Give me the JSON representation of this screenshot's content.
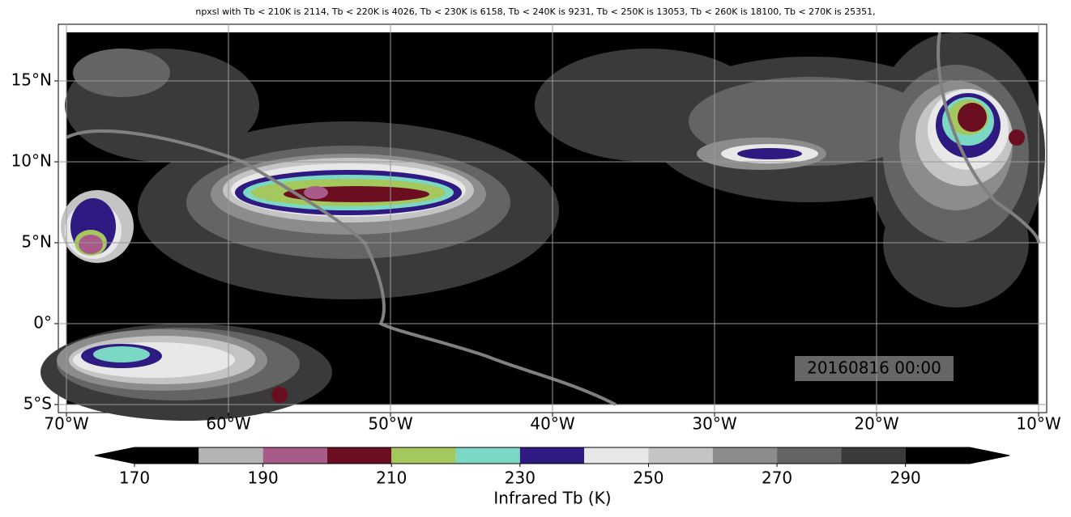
{
  "chart_data": {
    "type": "contour-map",
    "title": "npxsl with Tb < 210K is 2114,  Tb < 220K is 4026,  Tb < 230K is 6158,  Tb < 240K is 9231,  Tb < 250K is 13053,  Tb < 260K is 18100,  Tb < 270K is 25351,",
    "xlim": [
      -70.5,
      -9.5
    ],
    "ylim": [
      -5.5,
      18.5
    ],
    "xticks": [
      {
        "value": -70,
        "label": "70°W"
      },
      {
        "value": -60,
        "label": "60°W"
      },
      {
        "value": -50,
        "label": "50°W"
      },
      {
        "value": -40,
        "label": "40°W"
      },
      {
        "value": -30,
        "label": "30°W"
      },
      {
        "value": -20,
        "label": "20°W"
      },
      {
        "value": -10,
        "label": "10°W"
      }
    ],
    "yticks": [
      {
        "value": 15,
        "label": "15°N"
      },
      {
        "value": 10,
        "label": "10°N"
      },
      {
        "value": 5,
        "label": "5°N"
      },
      {
        "value": 0,
        "label": "0°"
      },
      {
        "value": -5,
        "label": "5°S"
      }
    ],
    "grid": true,
    "annotation": "20160816 00:00",
    "colorbar": {
      "label": "Infrared Tb (K)",
      "extend": "both",
      "levels": [
        170,
        180,
        190,
        200,
        210,
        220,
        230,
        240,
        250,
        260,
        270,
        280,
        290,
        300
      ],
      "colors": [
        "#000000",
        "#b4b4b4",
        "#a85a88",
        "#6b0e20",
        "#a5c85e",
        "#7ad8c4",
        "#2e1a80",
        "#e8e8e8",
        "#c4c4c4",
        "#8c8c8c",
        "#646464",
        "#3a3a3a",
        "#000000"
      ],
      "ticks": [
        170,
        190,
        210,
        230,
        250,
        270,
        290
      ]
    }
  }
}
